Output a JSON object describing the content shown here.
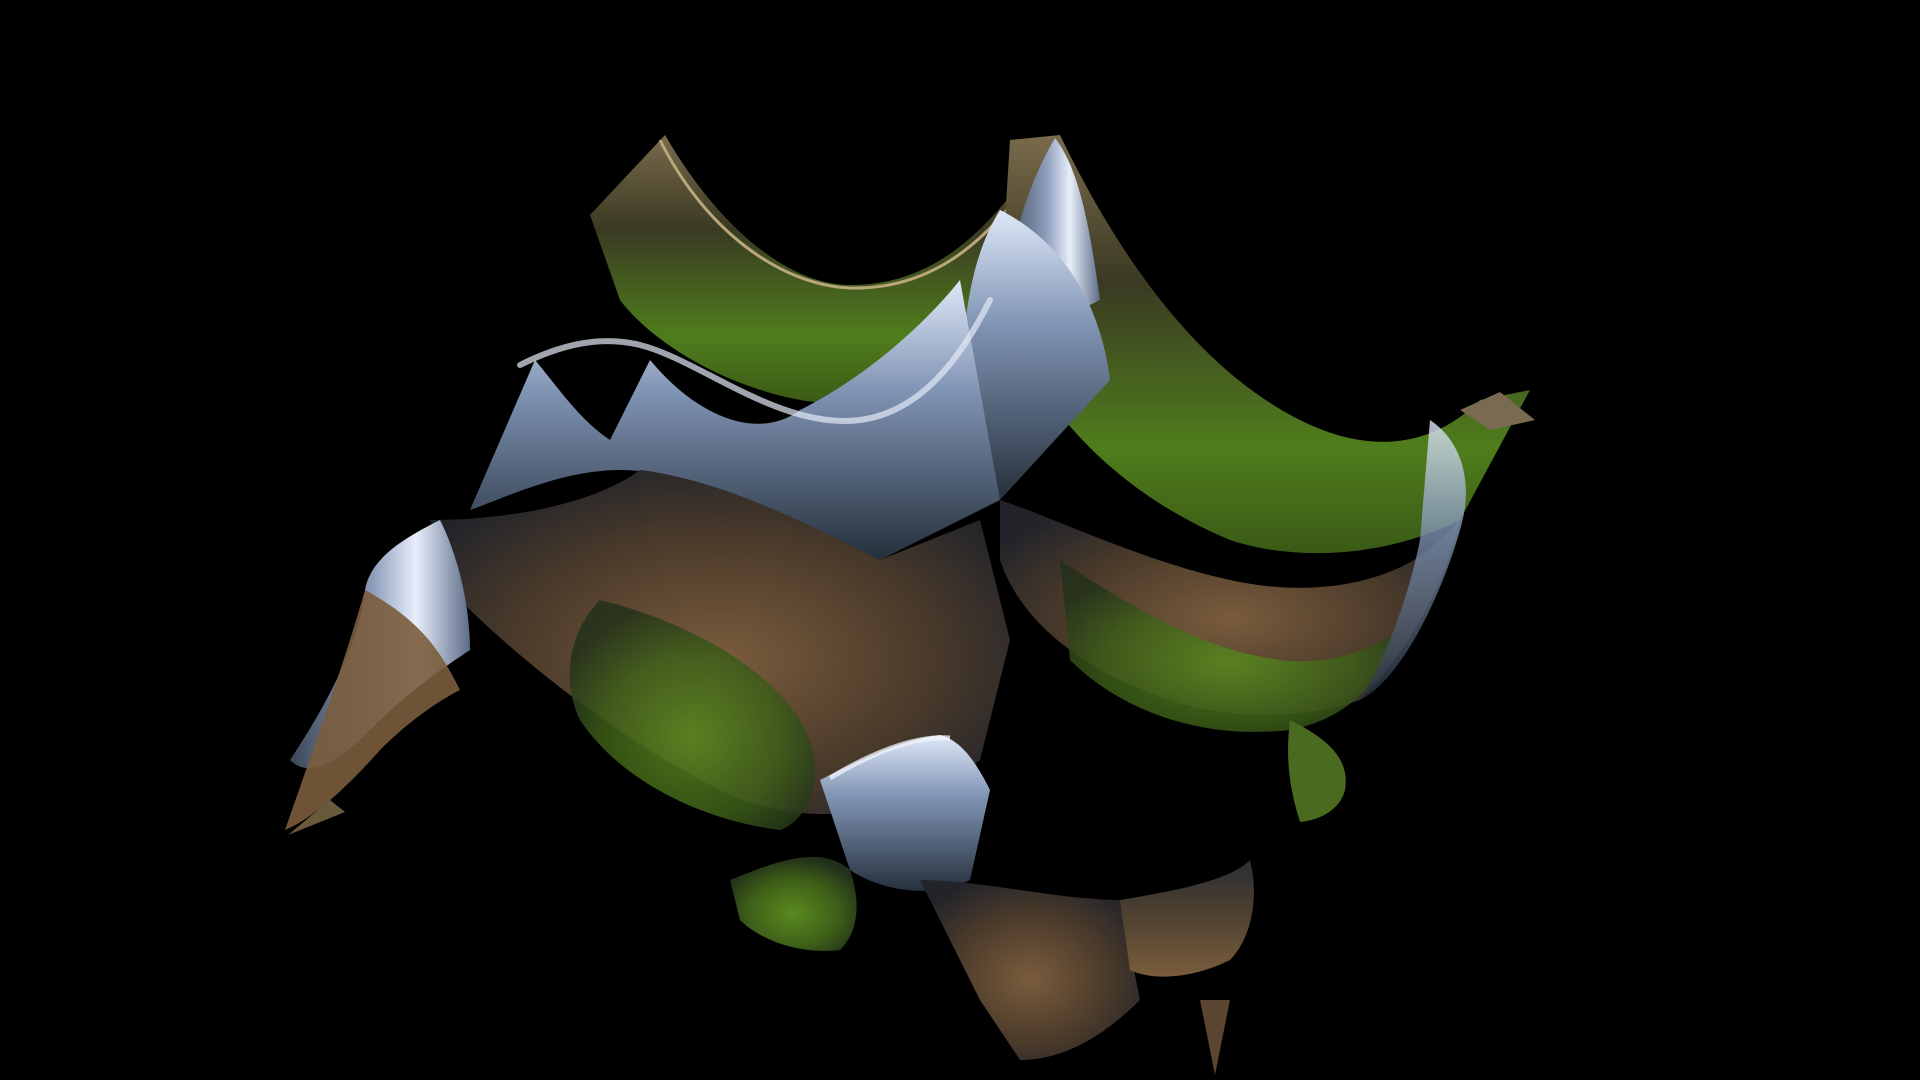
{
  "scene": {
    "background_color": "#000000",
    "colors": {
      "grass_green": "#4f7d1c",
      "earth_brown": "#7a5c3c",
      "ridge_steel": "#7f93b3",
      "ridge_highlight": "#e6eefc",
      "shadow": "#1a1f22"
    }
  }
}
